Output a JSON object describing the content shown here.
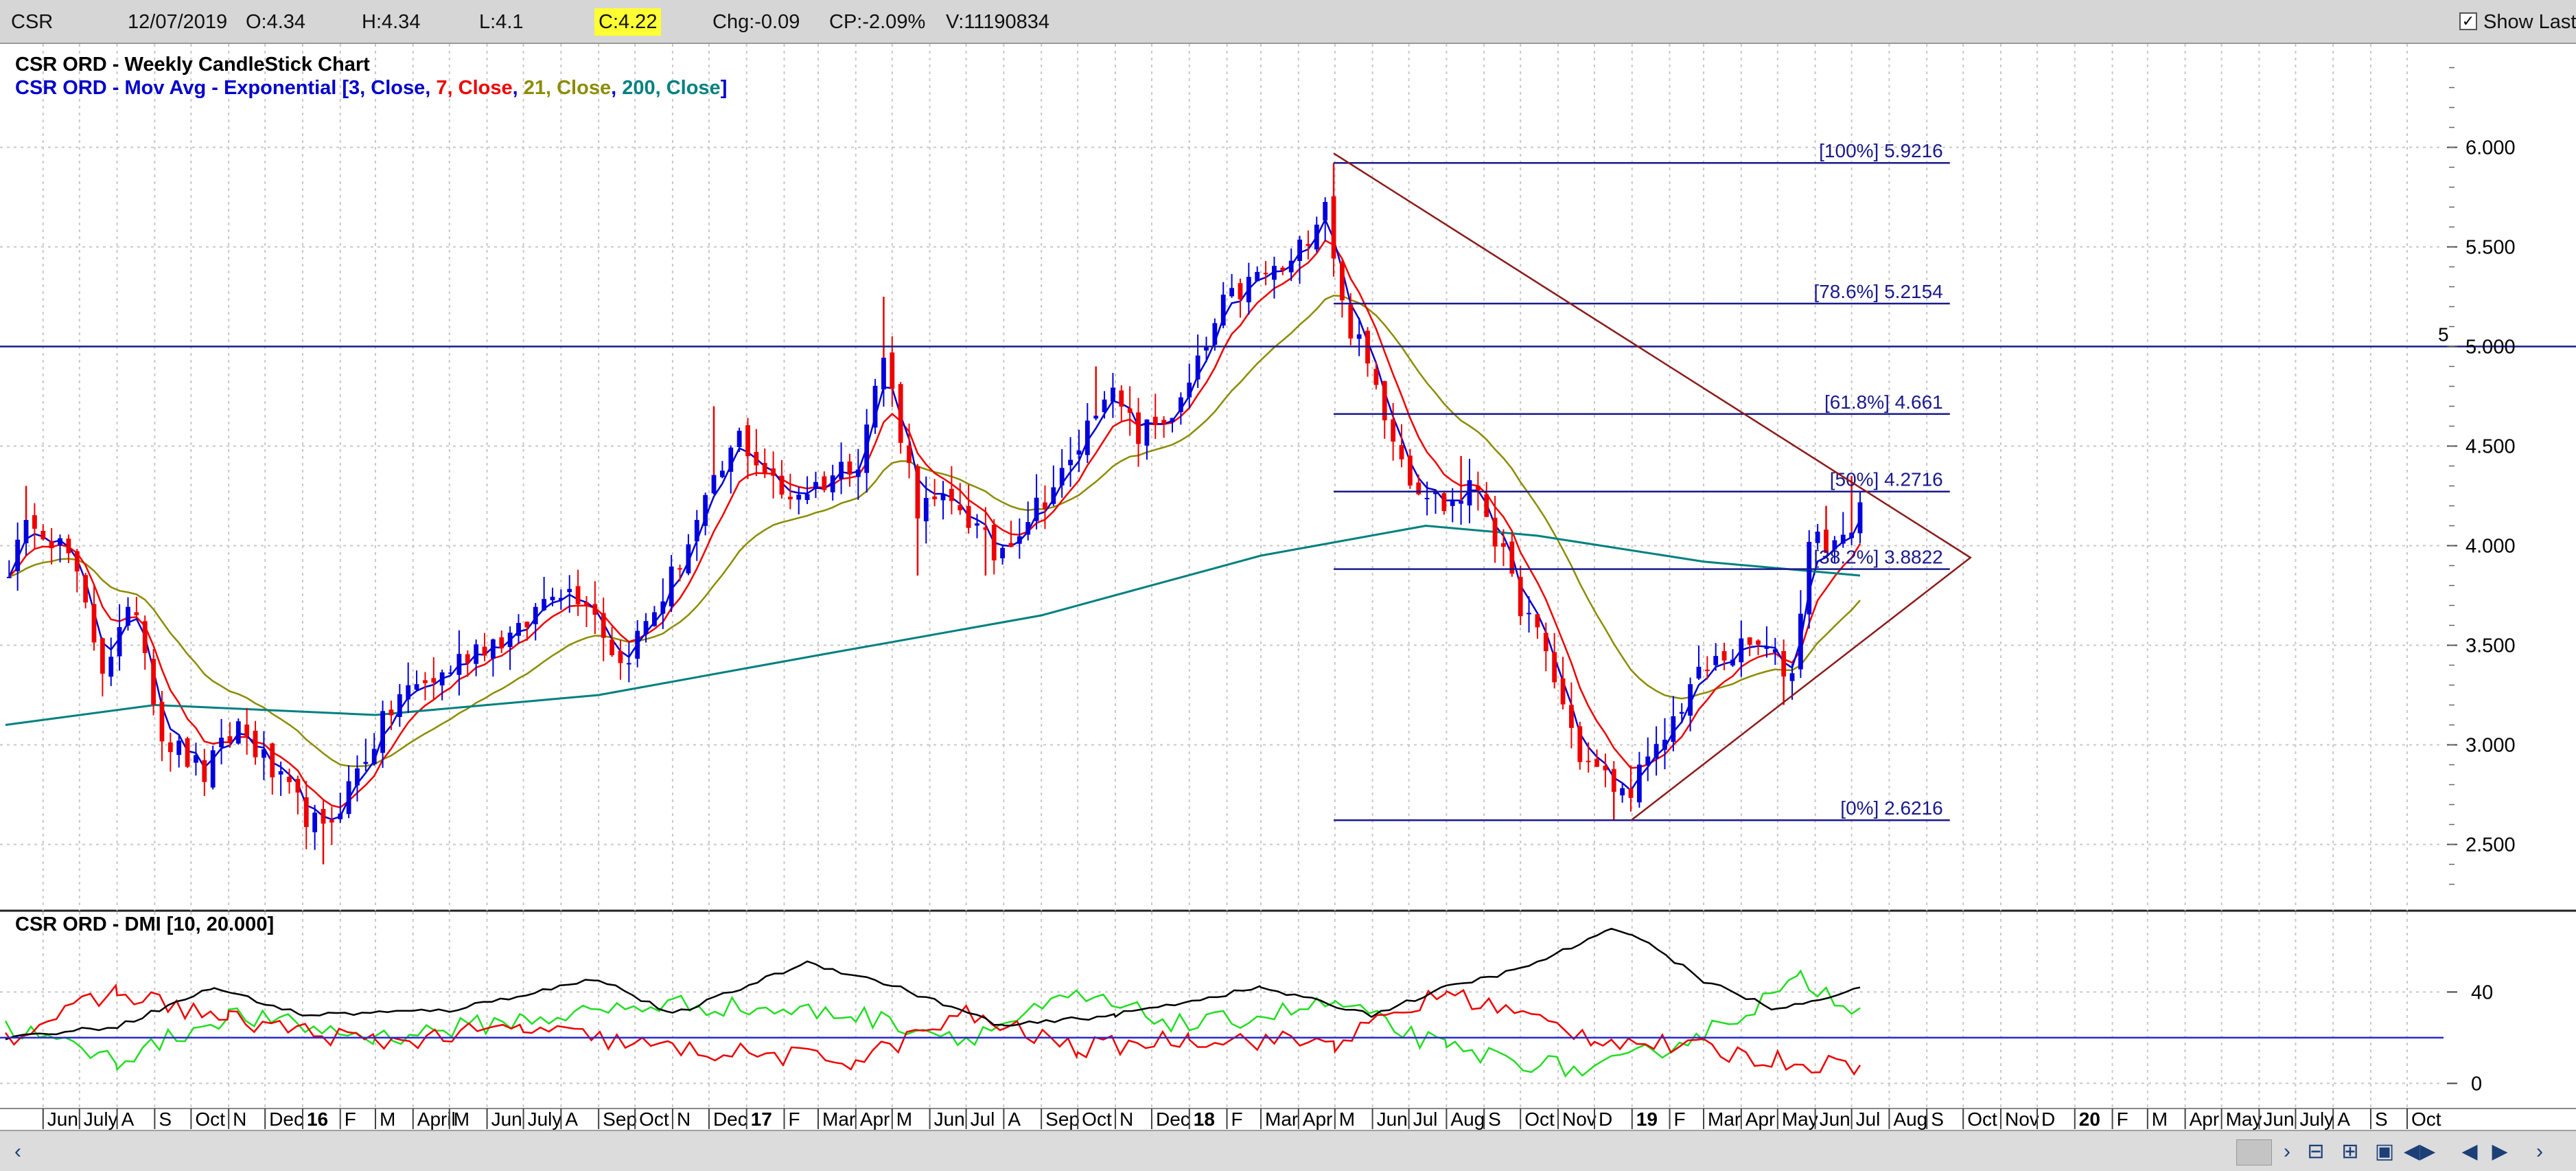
{
  "toolbar": {
    "symbol": "CSR",
    "date": "12/07/2019",
    "open": "O:4.34",
    "high": "H:4.34",
    "low": "L:4.1",
    "close": "C:4.22",
    "change": "Chg:-0.09",
    "change_pct": "CP:-2.09%",
    "volume": "V:11190834",
    "show_last_label": "Show Last",
    "show_last_checked": true
  },
  "legend": {
    "title": "CSR ORD - Weekly CandleStick Chart",
    "ma_prefix": "CSR ORD - Mov Avg - Exponential [",
    "ma_items": [
      {
        "text": "3, Close",
        "color": "#0000cc"
      },
      {
        "text": "7, Close",
        "color": "#ee0000"
      },
      {
        "text": "21, Close",
        "color": "#8c8c00"
      },
      {
        "text": "200, Close",
        "color": "#008080"
      }
    ],
    "ma_suffix": "]",
    "dmi_title": "CSR ORD - DMI [10, 20.000]"
  },
  "colors": {
    "bull": "#0000dd",
    "bear": "#ee0000",
    "ema3": "#0000cc",
    "ema7": "#ee0000",
    "ema21": "#8c8c00",
    "ema200": "#008080",
    "fib": "#1a1a8c",
    "triangle": "#8b1a1a",
    "pdi": "#22dd22",
    "mdi": "#ee0000",
    "adx": "#000000",
    "grid": "#c8c8c8"
  },
  "chart_data": {
    "type": "candlestick",
    "title": "CSR ORD - Weekly CandleStick Chart",
    "x_range": [
      "2015-05-01",
      "2020-10-31"
    ],
    "y_range": [
      2.25,
      6.45
    ],
    "y_ticks": [
      "2.500",
      "3.000",
      "3.500",
      "4.000",
      "4.500",
      "5.000",
      "5.500",
      "6.000"
    ],
    "y_tick_values": [
      2.5,
      3.0,
      3.5,
      4.0,
      4.5,
      5.0,
      5.5,
      6.0
    ],
    "x_labels": [
      {
        "date": "2015-06-01",
        "text": "Jun"
      },
      {
        "date": "2015-07-01",
        "text": "July"
      },
      {
        "date": "2015-08-01",
        "text": "A"
      },
      {
        "date": "2015-09-01",
        "text": "S"
      },
      {
        "date": "2015-10-01",
        "text": "Oct"
      },
      {
        "date": "2015-11-01",
        "text": "N"
      },
      {
        "date": "2015-12-01",
        "text": "Dec"
      },
      {
        "date": "2016-01-01",
        "text": "16",
        "bold": true
      },
      {
        "date": "2016-02-01",
        "text": "F"
      },
      {
        "date": "2016-03-01",
        "text": "M"
      },
      {
        "date": "2016-04-01",
        "text": "April"
      },
      {
        "date": "2016-05-01",
        "text": "M"
      },
      {
        "date": "2016-06-01",
        "text": "Jun"
      },
      {
        "date": "2016-07-01",
        "text": "July"
      },
      {
        "date": "2016-08-01",
        "text": "A"
      },
      {
        "date": "2016-09-01",
        "text": "Sep"
      },
      {
        "date": "2016-10-01",
        "text": "Oct"
      },
      {
        "date": "2016-11-01",
        "text": "N"
      },
      {
        "date": "2016-12-01",
        "text": "Dec"
      },
      {
        "date": "2017-01-01",
        "text": "17",
        "bold": true
      },
      {
        "date": "2017-02-01",
        "text": "F"
      },
      {
        "date": "2017-03-01",
        "text": "Mar"
      },
      {
        "date": "2017-04-01",
        "text": "Apr"
      },
      {
        "date": "2017-05-01",
        "text": "M"
      },
      {
        "date": "2017-06-01",
        "text": "Jun"
      },
      {
        "date": "2017-07-01",
        "text": "Jul"
      },
      {
        "date": "2017-08-01",
        "text": "A"
      },
      {
        "date": "2017-09-01",
        "text": "Sep"
      },
      {
        "date": "2017-10-01",
        "text": "Oct"
      },
      {
        "date": "2017-11-01",
        "text": "N"
      },
      {
        "date": "2017-12-01",
        "text": "Dec"
      },
      {
        "date": "2018-01-01",
        "text": "18",
        "bold": true
      },
      {
        "date": "2018-02-01",
        "text": "F"
      },
      {
        "date": "2018-03-01",
        "text": "Mar"
      },
      {
        "date": "2018-04-01",
        "text": "Apr"
      },
      {
        "date": "2018-05-01",
        "text": "M"
      },
      {
        "date": "2018-06-01",
        "text": "Jun"
      },
      {
        "date": "2018-07-01",
        "text": "Jul"
      },
      {
        "date": "2018-08-01",
        "text": "Aug"
      },
      {
        "date": "2018-09-01",
        "text": "S"
      },
      {
        "date": "2018-10-01",
        "text": "Oct"
      },
      {
        "date": "2018-11-01",
        "text": "Nov"
      },
      {
        "date": "2018-12-01",
        "text": "D"
      },
      {
        "date": "2019-01-01",
        "text": "19",
        "bold": true
      },
      {
        "date": "2019-02-01",
        "text": "F"
      },
      {
        "date": "2019-03-01",
        "text": "Mar"
      },
      {
        "date": "2019-04-01",
        "text": "Apr"
      },
      {
        "date": "2019-05-01",
        "text": "May"
      },
      {
        "date": "2019-06-01",
        "text": "Jun"
      },
      {
        "date": "2019-07-01",
        "text": "Jul"
      },
      {
        "date": "2019-08-01",
        "text": "Aug"
      },
      {
        "date": "2019-09-01",
        "text": "S"
      },
      {
        "date": "2019-10-01",
        "text": "Oct"
      },
      {
        "date": "2019-11-01",
        "text": "Nov"
      },
      {
        "date": "2019-12-01",
        "text": "D"
      },
      {
        "date": "2020-01-01",
        "text": "20",
        "bold": true
      },
      {
        "date": "2020-02-01",
        "text": "F"
      },
      {
        "date": "2020-03-01",
        "text": "M"
      },
      {
        "date": "2020-04-01",
        "text": "Apr"
      },
      {
        "date": "2020-05-01",
        "text": "May"
      },
      {
        "date": "2020-06-01",
        "text": "Jun"
      },
      {
        "date": "2020-07-01",
        "text": "July"
      },
      {
        "date": "2020-08-01",
        "text": "A"
      },
      {
        "date": "2020-09-01",
        "text": "S"
      },
      {
        "date": "2020-10-01",
        "text": "Oct"
      }
    ],
    "close_path": [
      {
        "date": "2015-05-04",
        "close": 3.9
      },
      {
        "date": "2015-05-25",
        "close": 4.15
      },
      {
        "date": "2015-06-22",
        "close": 3.95
      },
      {
        "date": "2015-07-20",
        "close": 3.4
      },
      {
        "date": "2015-08-17",
        "close": 3.7
      },
      {
        "date": "2015-09-07",
        "close": 3.05
      },
      {
        "date": "2015-10-12",
        "close": 2.85
      },
      {
        "date": "2015-11-09",
        "close": 3.1
      },
      {
        "date": "2015-12-14",
        "close": 2.8
      },
      {
        "date": "2016-01-18",
        "close": 2.55
      },
      {
        "date": "2016-02-22",
        "close": 2.95
      },
      {
        "date": "2016-03-21",
        "close": 3.25
      },
      {
        "date": "2016-04-25",
        "close": 3.35
      },
      {
        "date": "2016-05-23",
        "close": 3.5
      },
      {
        "date": "2016-06-27",
        "close": 3.55
      },
      {
        "date": "2016-07-25",
        "close": 3.8
      },
      {
        "date": "2016-08-22",
        "close": 3.75
      },
      {
        "date": "2016-09-19",
        "close": 3.4
      },
      {
        "date": "2016-10-24",
        "close": 3.75
      },
      {
        "date": "2016-11-28",
        "close": 4.2
      },
      {
        "date": "2016-12-26",
        "close": 4.55
      },
      {
        "date": "2017-01-30",
        "close": 4.25
      },
      {
        "date": "2017-02-27",
        "close": 4.3
      },
      {
        "date": "2017-04-03",
        "close": 4.45
      },
      {
        "date": "2017-04-24",
        "close": 4.95
      },
      {
        "date": "2017-05-22",
        "close": 4.2
      },
      {
        "date": "2017-06-26",
        "close": 4.2
      },
      {
        "date": "2017-07-24",
        "close": 3.95
      },
      {
        "date": "2017-08-21",
        "close": 4.15
      },
      {
        "date": "2017-09-25",
        "close": 4.4
      },
      {
        "date": "2017-10-23",
        "close": 4.8
      },
      {
        "date": "2017-11-20",
        "close": 4.55
      },
      {
        "date": "2017-12-25",
        "close": 4.7
      },
      {
        "date": "2018-01-29",
        "close": 5.2
      },
      {
        "date": "2018-02-26",
        "close": 5.35
      },
      {
        "date": "2018-03-26",
        "close": 5.4
      },
      {
        "date": "2018-04-23",
        "close": 5.75
      },
      {
        "date": "2018-05-07",
        "close": 5.2
      },
      {
        "date": "2018-06-04",
        "close": 4.8
      },
      {
        "date": "2018-07-02",
        "close": 4.35
      },
      {
        "date": "2018-07-30",
        "close": 4.2
      },
      {
        "date": "2018-08-27",
        "close": 4.3
      },
      {
        "date": "2018-09-24",
        "close": 3.8
      },
      {
        "date": "2018-10-22",
        "close": 3.45
      },
      {
        "date": "2018-11-19",
        "close": 2.95
      },
      {
        "date": "2018-12-24",
        "close": 2.75
      },
      {
        "date": "2019-01-21",
        "close": 2.95
      },
      {
        "date": "2019-02-18",
        "close": 3.3
      },
      {
        "date": "2019-03-18",
        "close": 3.45
      },
      {
        "date": "2019-04-15",
        "close": 3.5
      },
      {
        "date": "2019-05-13",
        "close": 3.35
      },
      {
        "date": "2019-05-27",
        "close": 4.05
      },
      {
        "date": "2019-06-24",
        "close": 4.0
      },
      {
        "date": "2019-07-08",
        "close": 4.22
      }
    ],
    "highs": [
      {
        "date": "2015-05-18",
        "value": 4.3
      },
      {
        "date": "2016-12-05",
        "value": 4.7
      },
      {
        "date": "2017-04-24",
        "value": 5.25
      },
      {
        "date": "2017-10-16",
        "value": 4.9
      },
      {
        "date": "2018-04-30",
        "value": 5.9216
      },
      {
        "date": "2018-08-13",
        "value": 4.45
      },
      {
        "date": "2019-06-10",
        "value": 4.2
      },
      {
        "date": "2019-07-01",
        "value": 4.35
      }
    ],
    "lows": [
      {
        "date": "2016-01-18",
        "value": 2.4
      },
      {
        "date": "2017-05-22",
        "value": 3.85
      },
      {
        "date": "2017-07-17",
        "value": 3.85
      },
      {
        "date": "2018-12-17",
        "value": 2.6216
      },
      {
        "date": "2019-05-06",
        "value": 3.2
      }
    ],
    "ema200": [
      {
        "date": "2015-05-01",
        "value": 3.1
      },
      {
        "date": "2015-09-01",
        "value": 3.2
      },
      {
        "date": "2016-03-01",
        "value": 3.15
      },
      {
        "date": "2016-09-01",
        "value": 3.25
      },
      {
        "date": "2017-03-01",
        "value": 3.45
      },
      {
        "date": "2017-09-01",
        "value": 3.65
      },
      {
        "date": "2018-03-01",
        "value": 3.95
      },
      {
        "date": "2018-07-15",
        "value": 4.1
      },
      {
        "date": "2018-10-15",
        "value": 4.05
      },
      {
        "date": "2019-03-01",
        "value": 3.92
      },
      {
        "date": "2019-07-08",
        "value": 3.85
      }
    ],
    "fib_levels": [
      {
        "label": "[100%] 5.9216",
        "value": 5.9216
      },
      {
        "label": "[78.6%] 5.2154",
        "value": 5.2154
      },
      {
        "label": "[61.8%] 4.661",
        "value": 4.661
      },
      {
        "label": "[50%] 4.2716",
        "value": 4.2716
      },
      {
        "label": "[38.2%] 3.8822",
        "value": 3.8822
      },
      {
        "label": "[0%] 2.6216",
        "value": 2.6216
      }
    ],
    "fib_range": [
      "2018-04-30",
      "2019-09-20"
    ],
    "horizontal_line": {
      "value": 5.0,
      "label": "5"
    },
    "triangle": [
      {
        "date": "2018-04-30",
        "value": 5.97
      },
      {
        "date": "2019-10-07",
        "value": 3.94
      },
      {
        "date": "2018-12-31",
        "value": 2.62
      }
    ],
    "dmi": {
      "title": "CSR ORD - DMI [10, 20.000]",
      "y_range": [
        -8,
        75
      ],
      "y_ticks": [
        "0",
        "40"
      ],
      "y_tick_values": [
        0,
        40
      ],
      "threshold": 20,
      "adx": [
        {
          "date": "2015-05-01",
          "value": 20
        },
        {
          "date": "2015-08-01",
          "value": 25
        },
        {
          "date": "2015-10-20",
          "value": 42
        },
        {
          "date": "2016-01-01",
          "value": 30
        },
        {
          "date": "2016-05-01",
          "value": 32
        },
        {
          "date": "2016-09-01",
          "value": 46
        },
        {
          "date": "2016-11-01",
          "value": 30
        },
        {
          "date": "2017-02-20",
          "value": 53
        },
        {
          "date": "2017-05-01",
          "value": 43
        },
        {
          "date": "2017-08-01",
          "value": 25
        },
        {
          "date": "2017-11-01",
          "value": 30
        },
        {
          "date": "2018-03-01",
          "value": 42
        },
        {
          "date": "2018-06-01",
          "value": 30
        },
        {
          "date": "2018-08-01",
          "value": 42
        },
        {
          "date": "2018-10-01",
          "value": 50
        },
        {
          "date": "2018-12-15",
          "value": 67
        },
        {
          "date": "2019-01-01",
          "value": 66
        },
        {
          "date": "2019-03-01",
          "value": 45
        },
        {
          "date": "2019-05-01",
          "value": 32
        },
        {
          "date": "2019-07-08",
          "value": 42
        }
      ],
      "pdi": [
        {
          "date": "2015-05-01",
          "value": 25
        },
        {
          "date": "2015-08-01",
          "value": 10
        },
        {
          "date": "2015-11-01",
          "value": 30
        },
        {
          "date": "2016-03-01",
          "value": 20
        },
        {
          "date": "2016-07-01",
          "value": 28
        },
        {
          "date": "2016-11-01",
          "value": 35
        },
        {
          "date": "2017-04-01",
          "value": 30
        },
        {
          "date": "2017-07-01",
          "value": 20
        },
        {
          "date": "2017-10-01",
          "value": 38
        },
        {
          "date": "2018-01-01",
          "value": 25
        },
        {
          "date": "2018-05-01",
          "value": 35
        },
        {
          "date": "2018-08-01",
          "value": 15
        },
        {
          "date": "2018-12-01",
          "value": 5
        },
        {
          "date": "2019-03-01",
          "value": 22
        },
        {
          "date": "2019-05-20",
          "value": 45
        },
        {
          "date": "2019-07-08",
          "value": 33
        }
      ],
      "mdi": [
        {
          "date": "2015-05-01",
          "value": 20
        },
        {
          "date": "2015-08-01",
          "value": 40
        },
        {
          "date": "2015-11-01",
          "value": 28
        },
        {
          "date": "2016-03-01",
          "value": 18
        },
        {
          "date": "2016-07-01",
          "value": 24
        },
        {
          "date": "2016-11-01",
          "value": 15
        },
        {
          "date": "2017-04-01",
          "value": 10
        },
        {
          "date": "2017-07-01",
          "value": 30
        },
        {
          "date": "2017-10-01",
          "value": 15
        },
        {
          "date": "2018-01-01",
          "value": 20
        },
        {
          "date": "2018-05-01",
          "value": 18
        },
        {
          "date": "2018-08-01",
          "value": 40
        },
        {
          "date": "2018-12-01",
          "value": 20
        },
        {
          "date": "2019-03-01",
          "value": 15
        },
        {
          "date": "2019-05-01",
          "value": 10
        },
        {
          "date": "2019-07-08",
          "value": 8
        }
      ]
    }
  }
}
